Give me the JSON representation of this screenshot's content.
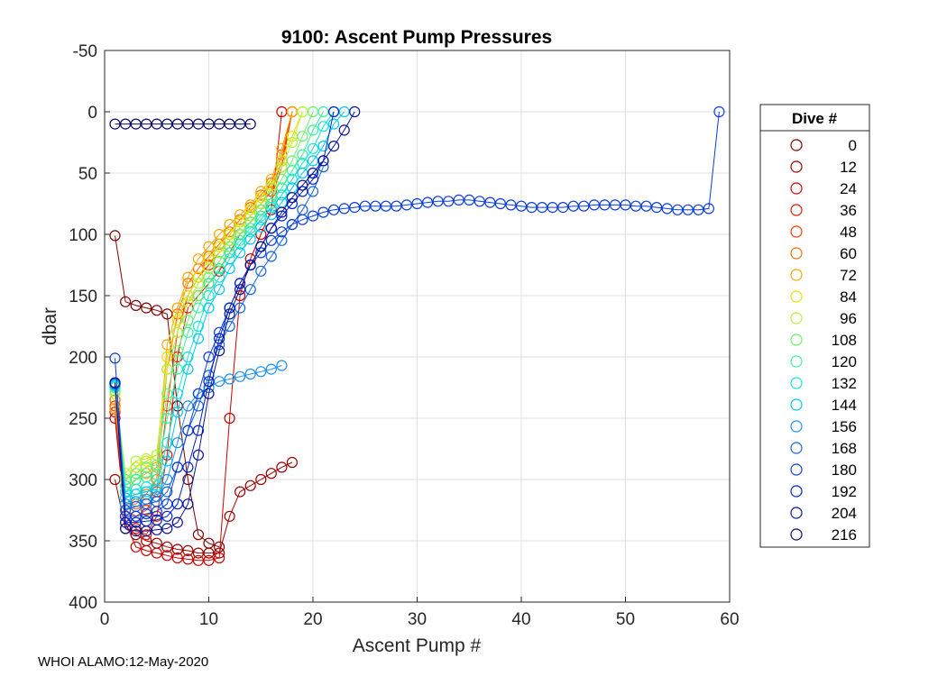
{
  "chart_data": {
    "type": "line",
    "title": "9100: Ascent Pump Pressures",
    "xlabel": "Ascent Pump #",
    "ylabel": "dbar",
    "xlim": [
      0,
      60
    ],
    "ylim": [
      -50,
      400
    ],
    "y_reversed": true,
    "grid": true,
    "x_ticks": [
      0,
      10,
      20,
      30,
      40,
      50,
      60
    ],
    "y_ticks": [
      -50,
      0,
      50,
      100,
      150,
      200,
      250,
      300,
      350,
      400
    ],
    "legend": {
      "title": "Dive #",
      "placement": "right",
      "entries": [
        "0",
        "12",
        "24",
        "36",
        "48",
        "60",
        "72",
        "84",
        "96",
        "108",
        "120",
        "132",
        "144",
        "156",
        "168",
        "180",
        "192",
        "204",
        "216"
      ],
      "colors": [
        "#7f0000",
        "#9a0000",
        "#c80000",
        "#e01400",
        "#f23a00",
        "#f76e00",
        "#f5a800",
        "#e8e000",
        "#b6f03c",
        "#6ef26e",
        "#3cf09a",
        "#16e6d2",
        "#00c8f0",
        "#1e90f0",
        "#1464dc",
        "#0a3cdc",
        "#0020c8",
        "#0a1496",
        "#0a0a64"
      ]
    },
    "series": [
      {
        "name": "0",
        "color": "#7f0000",
        "x": [
          1,
          2,
          3,
          4,
          5,
          6,
          7,
          8,
          9,
          10,
          11
        ],
        "y": [
          101,
          155,
          158,
          160,
          162,
          165,
          240,
          300,
          345,
          352,
          355
        ]
      },
      {
        "name": "12",
        "color": "#9a0000",
        "x": [
          1,
          2,
          3,
          4,
          5,
          6,
          7,
          8,
          9,
          10,
          11,
          12,
          13,
          14,
          15,
          16,
          17,
          18
        ],
        "y": [
          300,
          340,
          345,
          350,
          352,
          355,
          357,
          358,
          360,
          360,
          360,
          330,
          310,
          305,
          300,
          295,
          290,
          286
        ]
      },
      {
        "name": "24",
        "color": "#c80000",
        "x": [
          1,
          2,
          3,
          4,
          5,
          6,
          7,
          8,
          9,
          10,
          11,
          12,
          13,
          14,
          15,
          16,
          17
        ],
        "y": [
          250,
          335,
          355,
          358,
          360,
          362,
          364,
          365,
          366,
          366,
          364,
          250,
          150,
          120,
          100,
          80,
          0
        ]
      },
      {
        "name": "36",
        "color": "#e01400",
        "x": [
          1,
          2,
          3,
          4,
          5,
          6,
          7,
          8,
          9,
          10,
          11,
          12,
          13,
          14,
          15,
          16,
          17,
          18
        ],
        "y": [
          245,
          330,
          340,
          345,
          330,
          280,
          200,
          160,
          150,
          140,
          130,
          115,
          100,
          90,
          80,
          70,
          45,
          0
        ]
      },
      {
        "name": "48",
        "color": "#f23a00",
        "x": [
          1,
          2,
          3,
          4,
          5,
          6,
          7,
          8,
          9,
          10,
          11,
          12,
          13,
          14,
          15,
          16,
          17,
          18
        ],
        "y": [
          240,
          325,
          330,
          325,
          310,
          240,
          180,
          150,
          135,
          125,
          115,
          105,
          95,
          85,
          75,
          65,
          40,
          0
        ]
      },
      {
        "name": "60",
        "color": "#f76e00",
        "x": [
          1,
          2,
          3,
          4,
          5,
          6,
          7,
          8,
          9,
          10,
          11,
          12,
          13,
          14,
          15,
          16,
          17,
          18
        ],
        "y": [
          235,
          320,
          320,
          312,
          300,
          210,
          165,
          140,
          128,
          118,
          108,
          98,
          88,
          78,
          68,
          58,
          35,
          0
        ]
      },
      {
        "name": "72",
        "color": "#f5a800",
        "x": [
          1,
          2,
          3,
          4,
          5,
          6,
          7,
          8,
          9,
          10,
          11,
          12,
          13,
          14,
          15,
          16,
          17,
          18
        ],
        "y": [
          242,
          310,
          300,
          295,
          290,
          190,
          160,
          135,
          120,
          110,
          100,
          92,
          84,
          76,
          65,
          55,
          30,
          0
        ]
      },
      {
        "name": "84",
        "color": "#e8e000",
        "x": [
          1,
          2,
          3,
          4,
          5,
          6,
          7,
          8,
          9,
          10,
          11,
          12,
          13,
          14,
          15,
          16,
          17,
          18,
          19
        ],
        "y": [
          230,
          300,
          290,
          285,
          280,
          200,
          170,
          150,
          135,
          120,
          110,
          100,
          90,
          80,
          70,
          60,
          40,
          20,
          0
        ]
      },
      {
        "name": "96",
        "color": "#b6f03c",
        "x": [
          1,
          2,
          3,
          4,
          5,
          6,
          7,
          8,
          9,
          10,
          11,
          12,
          13,
          14,
          15,
          16,
          17,
          18,
          19
        ],
        "y": [
          225,
          295,
          285,
          283,
          280,
          210,
          180,
          155,
          140,
          128,
          115,
          105,
          95,
          85,
          75,
          62,
          45,
          25,
          0
        ]
      },
      {
        "name": "108",
        "color": "#6ef26e",
        "x": [
          1,
          2,
          3,
          4,
          5,
          6,
          7,
          8,
          9,
          10,
          11,
          12,
          13,
          14,
          15,
          16,
          17,
          18,
          19,
          20
        ],
        "y": [
          228,
          300,
          295,
          290,
          288,
          230,
          195,
          170,
          150,
          135,
          122,
          110,
          100,
          90,
          80,
          70,
          55,
          40,
          20,
          0
        ]
      },
      {
        "name": "120",
        "color": "#3cf09a",
        "x": [
          1,
          2,
          3,
          4,
          5,
          6,
          7,
          8,
          9,
          10,
          11,
          12,
          13,
          14,
          15,
          16,
          17,
          18,
          19,
          20,
          21
        ],
        "y": [
          225,
          305,
          300,
          298,
          296,
          250,
          210,
          180,
          160,
          140,
          128,
          115,
          105,
          95,
          85,
          75,
          62,
          48,
          35,
          15,
          0
        ]
      },
      {
        "name": "132",
        "color": "#16e6d2",
        "x": [
          1,
          2,
          3,
          4,
          5,
          6,
          7,
          8,
          9,
          10,
          11,
          12,
          13,
          14,
          15,
          16,
          17,
          18,
          19,
          20,
          21,
          22
        ],
        "y": [
          224,
          310,
          308,
          306,
          305,
          270,
          230,
          200,
          175,
          150,
          135,
          120,
          108,
          98,
          88,
          78,
          68,
          55,
          42,
          30,
          12,
          0
        ]
      },
      {
        "name": "144",
        "color": "#00c8f0",
        "x": [
          1,
          2,
          3,
          4,
          5,
          6,
          7,
          8,
          9,
          10,
          11,
          12,
          13,
          14,
          15,
          16,
          17,
          18,
          19,
          20,
          21,
          22,
          23
        ],
        "y": [
          223,
          315,
          312,
          310,
          308,
          285,
          245,
          210,
          185,
          160,
          145,
          128,
          115,
          104,
          94,
          84,
          74,
          62,
          50,
          40,
          28,
          10,
          0
        ]
      },
      {
        "name": "156",
        "color": "#1e90f0",
        "x": [
          1,
          2,
          3,
          4,
          5,
          6,
          7,
          8,
          9,
          10,
          11,
          12,
          13,
          14,
          15,
          16,
          17
        ],
        "y": [
          222,
          320,
          318,
          316,
          314,
          300,
          270,
          240,
          230,
          225,
          220,
          218,
          216,
          214,
          212,
          210,
          207
        ]
      },
      {
        "name": "168",
        "color": "#1464dc",
        "x": [
          1,
          2,
          3,
          4,
          5,
          6,
          7,
          8,
          9,
          10,
          11,
          12,
          13,
          14,
          15,
          16,
          17,
          18,
          19,
          20,
          21
        ],
        "y": [
          222,
          325,
          322,
          320,
          318,
          310,
          290,
          260,
          240,
          215,
          190,
          175,
          160,
          145,
          130,
          118,
          105,
          92,
          80,
          65,
          45
        ]
      },
      {
        "name": "180",
        "color": "#0a3cdc",
        "x": [
          1,
          2,
          3,
          4,
          5,
          6,
          7,
          8,
          9,
          10,
          11,
          12,
          13,
          14,
          15,
          16,
          17,
          18,
          19,
          20,
          21,
          22,
          23,
          24,
          25,
          26,
          27,
          28,
          29,
          30,
          31,
          32,
          33,
          34,
          35,
          36,
          37,
          38,
          39,
          40,
          41,
          42,
          43,
          44,
          45,
          46,
          47,
          48,
          49,
          50,
          51,
          52,
          53,
          54,
          55,
          56,
          57,
          58,
          59
        ],
        "y": [
          201,
          330,
          330,
          328,
          326,
          320,
          290,
          260,
          230,
          200,
          180,
          160,
          140,
          125,
          115,
          105,
          98,
          92,
          88,
          85,
          82,
          80,
          79,
          78,
          77,
          77,
          77,
          77,
          76,
          75,
          74,
          73,
          73,
          72,
          72,
          73,
          74,
          75,
          76,
          77,
          78,
          78,
          78,
          78,
          77,
          77,
          76,
          76,
          76,
          76,
          77,
          77,
          78,
          79,
          80,
          80,
          80,
          79,
          0
        ]
      },
      {
        "name": "192",
        "color": "#0020c8",
        "x": [
          1,
          2,
          3,
          4,
          5,
          6,
          7,
          8,
          9,
          10,
          11,
          12,
          13,
          14,
          15,
          16,
          17,
          18,
          19,
          20,
          21,
          22
        ],
        "y": [
          221,
          335,
          335,
          334,
          333,
          330,
          320,
          290,
          260,
          220,
          185,
          160,
          140,
          125,
          110,
          95,
          85,
          75,
          65,
          55,
          40,
          0
        ]
      },
      {
        "name": "204",
        "color": "#0a1496",
        "x": [
          1,
          2,
          3,
          4,
          5,
          6,
          7,
          8,
          9,
          10,
          11,
          12,
          13,
          14,
          15,
          16,
          17,
          18,
          19,
          20,
          21,
          22,
          23,
          24
        ],
        "y": [
          221,
          340,
          342,
          342,
          341,
          340,
          335,
          320,
          280,
          230,
          195,
          165,
          145,
          125,
          110,
          95,
          82,
          70,
          60,
          50,
          40,
          28,
          15,
          0
        ]
      },
      {
        "name": "216",
        "color": "#0a0a64",
        "x": [
          1,
          2,
          3,
          4,
          5,
          6,
          7,
          8,
          9,
          10,
          11,
          12,
          13,
          14
        ],
        "y": [
          10,
          10,
          10,
          10,
          10,
          10,
          10,
          10,
          10,
          10,
          10,
          10,
          10,
          10
        ]
      }
    ]
  },
  "footer": {
    "text": "WHOI ALAMO:12-May-2020"
  }
}
